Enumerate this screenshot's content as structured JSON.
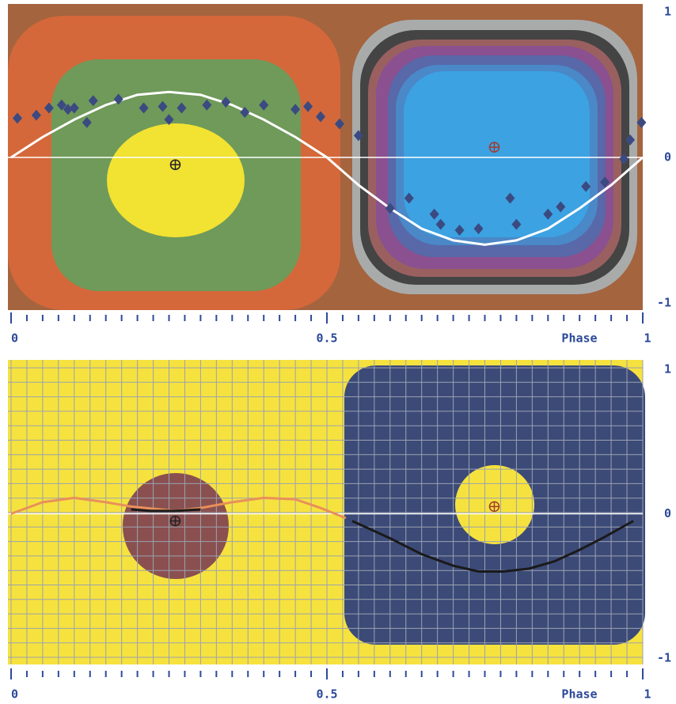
{
  "chart_data": [
    {
      "type": "scatter",
      "xlabel": "Phase",
      "xlim": [
        0,
        1
      ],
      "xticks": [
        0,
        0.5,
        1
      ],
      "ylim": [
        -1,
        1
      ],
      "yticks": [
        1,
        0,
        -1
      ],
      "points": {
        "color": "#3b4a80",
        "x": [
          0.01,
          0.04,
          0.06,
          0.08,
          0.09,
          0.1,
          0.12,
          0.13,
          0.17,
          0.21,
          0.24,
          0.25,
          0.27,
          0.31,
          0.34,
          0.37,
          0.4,
          0.45,
          0.47,
          0.49,
          0.52,
          0.55,
          0.6,
          0.63,
          0.67,
          0.68,
          0.71,
          0.74,
          0.79,
          0.8,
          0.85,
          0.87,
          0.91,
          0.94,
          0.97,
          0.98,
          0.998
        ],
        "values": [
          0.27,
          0.29,
          0.34,
          0.36,
          0.33,
          0.34,
          0.24,
          0.39,
          0.4,
          0.34,
          0.35,
          0.26,
          0.34,
          0.36,
          0.38,
          0.31,
          0.36,
          0.33,
          0.35,
          0.28,
          0.23,
          0.15,
          -0.35,
          -0.28,
          -0.39,
          -0.46,
          -0.5,
          -0.49,
          -0.28,
          -0.46,
          -0.39,
          -0.34,
          -0.2,
          -0.17,
          -0.01,
          0.12,
          0.24
        ]
      },
      "curve": {
        "color": "#ffffff",
        "x": [
          0,
          0.05,
          0.1,
          0.15,
          0.2,
          0.25,
          0.3,
          0.35,
          0.4,
          0.45,
          0.5,
          0.55,
          0.6,
          0.65,
          0.7,
          0.75,
          0.8,
          0.85,
          0.9,
          0.95,
          1
        ],
        "values": [
          0,
          0.14,
          0.26,
          0.36,
          0.43,
          0.45,
          0.43,
          0.36,
          0.26,
          0.14,
          0,
          -0.19,
          -0.35,
          -0.49,
          -0.57,
          -0.6,
          -0.57,
          -0.49,
          -0.35,
          -0.19,
          0
        ]
      },
      "markers": {
        "x": [
          0.26,
          0.765
        ],
        "values": [
          -0.05,
          0.07
        ]
      }
    },
    {
      "type": "line",
      "xlabel": "Phase",
      "xlim": [
        0,
        1
      ],
      "xticks": [
        0,
        0.5,
        1
      ],
      "ylim": [
        -1,
        1
      ],
      "yticks": [
        1,
        0,
        -1
      ],
      "grid": true,
      "lines": [
        {
          "color": "#e8905a",
          "x": [
            0,
            0.05,
            0.1,
            0.15,
            0.19,
            0.26,
            0.3,
            0.35,
            0.4,
            0.45,
            0.49,
            0.53
          ],
          "values": [
            0,
            0.08,
            0.11,
            0.08,
            0.05,
            0.02,
            0.04,
            0.08,
            0.11,
            0.1,
            0.04,
            -0.03
          ]
        },
        {
          "color": "#1a1a1a",
          "x": [
            0.19,
            0.22,
            0.26,
            0.3,
            0.32,
            0.54,
            0.6,
            0.65,
            0.7,
            0.74,
            0.78,
            0.82,
            0.86,
            0.9,
            0.94,
            0.985
          ],
          "values": [
            0.03,
            0.02,
            0.02,
            0.03,
            null,
            -0.05,
            -0.17,
            -0.28,
            -0.36,
            -0.4,
            -0.4,
            -0.38,
            -0.33,
            -0.25,
            -0.16,
            -0.05
          ]
        }
      ],
      "markers": {
        "x": [
          0.26,
          0.765
        ],
        "values": [
          -0.05,
          0.05
        ]
      }
    }
  ]
}
